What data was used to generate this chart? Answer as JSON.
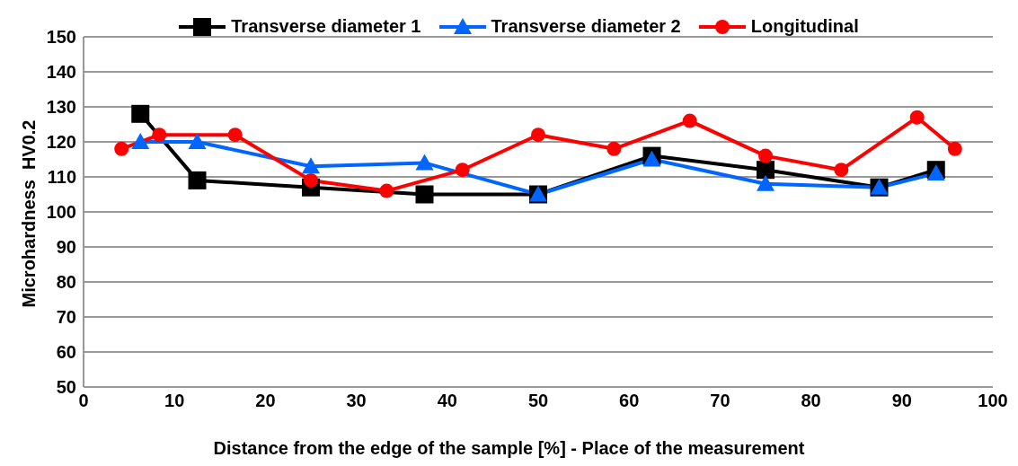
{
  "chart_data": {
    "type": "line",
    "xlabel": "Distance from the edge of the sample [%] - Place of the measurement",
    "ylabel": "Microhardness  HV0.2",
    "xlim": [
      0,
      100
    ],
    "xticks": [
      0,
      10,
      20,
      30,
      40,
      50,
      60,
      70,
      80,
      90,
      100
    ],
    "ylim": [
      50,
      150
    ],
    "yticks": [
      50,
      60,
      70,
      80,
      90,
      100,
      110,
      120,
      130,
      140,
      150
    ],
    "grid": "y",
    "legend": "top",
    "series": [
      {
        "name": "Transverse diameter 1",
        "color": "#000000",
        "marker": "square",
        "x": [
          6.25,
          12.5,
          25,
          37.5,
          50,
          62.5,
          75,
          87.5,
          93.75
        ],
        "values": [
          128,
          109,
          107,
          105,
          105,
          116,
          112,
          107,
          112
        ]
      },
      {
        "name": "Transverse diameter 2",
        "color": "#0066ff",
        "marker": "triangle",
        "x": [
          6.25,
          12.5,
          25,
          37.5,
          50,
          62.5,
          75,
          87.5,
          93.75
        ],
        "values": [
          120,
          120,
          113,
          114,
          105,
          115,
          108,
          107,
          111
        ]
      },
      {
        "name": "Longitudinal",
        "color": "#ff0000",
        "marker": "circle",
        "x": [
          4.17,
          8.33,
          16.67,
          25,
          33.33,
          41.67,
          50,
          58.33,
          66.67,
          75,
          83.33,
          91.67,
          95.83
        ],
        "values": [
          118,
          122,
          122,
          109,
          106,
          112,
          122,
          118,
          126,
          116,
          112,
          127,
          118
        ]
      }
    ]
  }
}
